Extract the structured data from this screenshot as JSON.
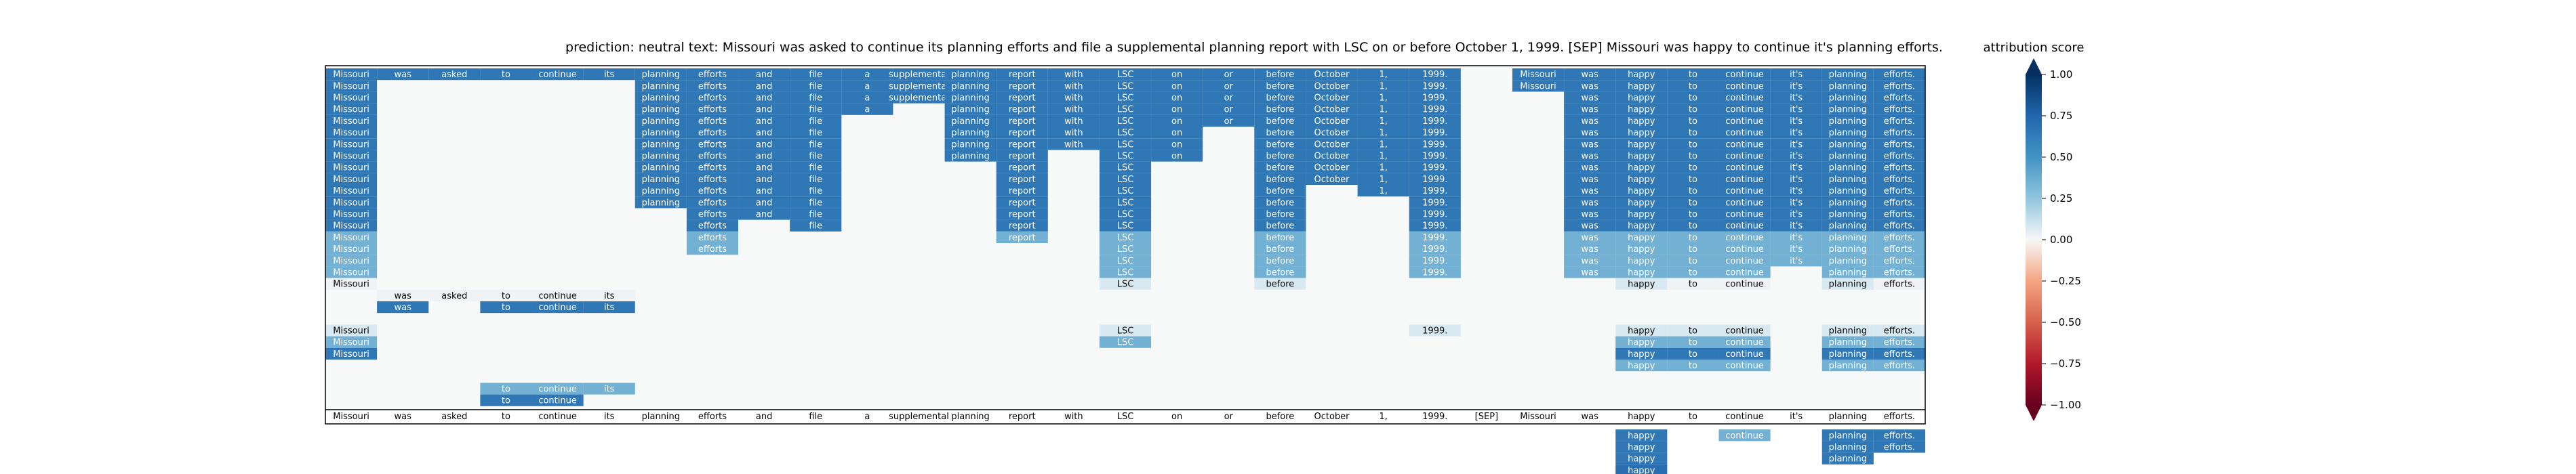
{
  "chart_data": {
    "type": "heatmap",
    "title": "prediction:  neutral     text:  Missouri was asked to continue its planning efforts and file a supplemental planning report with LSC on or before October 1, 1999. [SEP] Missouri was happy to continue it's planning efforts.",
    "tokens": [
      "Missouri",
      "was",
      "asked",
      "to",
      "continue",
      "its",
      "planning",
      "efforts",
      "and",
      "file",
      "a",
      "supplemental",
      "planning",
      "report",
      "with",
      "LSC",
      "on",
      "or",
      "before",
      "October",
      "1,",
      "1999.",
      "[SEP]",
      "Missouri",
      "was",
      "happy",
      "to",
      "continue",
      "it's",
      "planning",
      "efforts."
    ],
    "colorbar": {
      "label": "attribution score",
      "range": [
        -1.0,
        1.0
      ],
      "ticks": [
        "1.00",
        "0.75",
        "0.50",
        "0.25",
        "0.00",
        "−0.25",
        "−0.50",
        "−0.75",
        "−1.00"
      ]
    },
    "matrix": [
      [
        0.9,
        0.9,
        0.9,
        0.9,
        0.9,
        0.9,
        0.9,
        0.9,
        0.9,
        0.9,
        0.9,
        0.9,
        0.9,
        0.9,
        0.9,
        0.9,
        0.9,
        0.9,
        0.9,
        0.9,
        0.9,
        0.9,
        0,
        0.9,
        0.9,
        0.9,
        0.9,
        0.9,
        0.9,
        0.9,
        0.9
      ],
      [
        0.9,
        0,
        0,
        0,
        0,
        0,
        0.9,
        0.9,
        0.9,
        0.9,
        0.9,
        0.9,
        0.9,
        0.9,
        0.9,
        0.9,
        0.9,
        0.9,
        0.9,
        0.9,
        0.9,
        0.9,
        0,
        0.9,
        0.9,
        0.9,
        0.9,
        0.9,
        0.9,
        0.9,
        0.9
      ],
      [
        0.9,
        0,
        0,
        0,
        0,
        0,
        0.9,
        0.9,
        0.9,
        0.9,
        0.9,
        0.9,
        0.9,
        0.9,
        0.9,
        0.9,
        0.9,
        0.9,
        0.9,
        0.9,
        0.9,
        0.9,
        0,
        0,
        0.9,
        0.9,
        0.9,
        0.9,
        0.9,
        0.9,
        0.9
      ],
      [
        0.9,
        0,
        0,
        0,
        0,
        0,
        0.9,
        0.9,
        0.9,
        0.9,
        0.9,
        0,
        0.9,
        0.9,
        0.9,
        0.9,
        0.9,
        0.9,
        0.9,
        0.9,
        0.9,
        0.9,
        0,
        0,
        0.9,
        0.9,
        0.9,
        0.9,
        0.9,
        0.9,
        0.9
      ],
      [
        0.9,
        0,
        0,
        0,
        0,
        0,
        0.9,
        0.9,
        0.9,
        0.9,
        0,
        0,
        0.9,
        0.9,
        0.9,
        0.9,
        0.9,
        0.9,
        0.9,
        0.9,
        0.9,
        0.9,
        0,
        0,
        0.9,
        0.9,
        0.9,
        0.9,
        0.9,
        0.9,
        0.9
      ],
      [
        0.9,
        0,
        0,
        0,
        0,
        0,
        0.9,
        0.9,
        0.9,
        0.9,
        0,
        0,
        0.9,
        0.9,
        0.9,
        0.9,
        0.9,
        0,
        0.9,
        0.9,
        0.9,
        0.9,
        0,
        0,
        0.9,
        0.9,
        0.9,
        0.9,
        0.9,
        0.9,
        0.9
      ],
      [
        0.9,
        0,
        0,
        0,
        0,
        0,
        0.9,
        0.9,
        0.9,
        0.9,
        0,
        0,
        0.9,
        0.9,
        0.9,
        0.9,
        0.9,
        0,
        0.9,
        0.9,
        0.9,
        0.9,
        0,
        0,
        0.9,
        0.9,
        0.9,
        0.9,
        0.9,
        0.9,
        0.9
      ],
      [
        0.9,
        0,
        0,
        0,
        0,
        0,
        0.9,
        0.9,
        0.9,
        0.9,
        0,
        0,
        0.9,
        0.9,
        0,
        0.9,
        0.9,
        0,
        0.9,
        0.9,
        0.9,
        0.9,
        0,
        0,
        0.9,
        0.9,
        0.9,
        0.9,
        0.9,
        0.9,
        0.9
      ],
      [
        0.9,
        0,
        0,
        0,
        0,
        0,
        0.9,
        0.9,
        0.9,
        0.9,
        0,
        0,
        0,
        0.9,
        0,
        0.9,
        0,
        0,
        0.9,
        0.9,
        0.9,
        0.9,
        0,
        0,
        0.9,
        0.9,
        0.9,
        0.9,
        0.9,
        0.9,
        0.9
      ],
      [
        0.9,
        0,
        0,
        0,
        0,
        0,
        0.9,
        0.9,
        0.9,
        0.9,
        0,
        0,
        0,
        0.9,
        0,
        0.9,
        0,
        0,
        0.9,
        0.9,
        0.9,
        0.9,
        0,
        0,
        0.9,
        0.9,
        0.9,
        0.9,
        0.9,
        0.9,
        0.9
      ],
      [
        0.9,
        0,
        0,
        0,
        0,
        0,
        0.9,
        0.9,
        0.9,
        0.9,
        0,
        0,
        0,
        0.9,
        0,
        0.9,
        0,
        0,
        0.9,
        0,
        0.9,
        0.9,
        0,
        0,
        0.9,
        0.9,
        0.9,
        0.9,
        0.9,
        0.9,
        0.9
      ],
      [
        0.9,
        0,
        0,
        0,
        0,
        0,
        0.9,
        0.9,
        0.9,
        0.9,
        0,
        0,
        0,
        0.9,
        0,
        0.9,
        0,
        0,
        0.9,
        0,
        0,
        0.9,
        0,
        0,
        0.9,
        0.9,
        0.9,
        0.9,
        0.9,
        0.9,
        0.9
      ],
      [
        0.9,
        0,
        0,
        0,
        0,
        0,
        0,
        0.9,
        0.9,
        0.9,
        0,
        0,
        0,
        0.9,
        0,
        0.9,
        0,
        0,
        0.9,
        0,
        0,
        0.9,
        0,
        0,
        0.9,
        0.9,
        0.9,
        0.9,
        0.9,
        0.9,
        0.9
      ],
      [
        0.9,
        0,
        0,
        0,
        0,
        0,
        0,
        0.9,
        0,
        0.9,
        0,
        0,
        0,
        0.9,
        0,
        0.9,
        0,
        0,
        0.9,
        0,
        0,
        0.9,
        0,
        0,
        0.9,
        0.9,
        0.9,
        0.9,
        0.9,
        0.9,
        0.9
      ],
      [
        0.6,
        0,
        0,
        0,
        0,
        0,
        0,
        0.6,
        0,
        0,
        0,
        0,
        0,
        0.6,
        0,
        0.6,
        0,
        0,
        0.6,
        0,
        0,
        0.6,
        0,
        0,
        0.6,
        0.6,
        0.6,
        0.6,
        0.6,
        0.6,
        0.6
      ],
      [
        0.6,
        0,
        0,
        0,
        0,
        0,
        0,
        0.6,
        0,
        0,
        0,
        0,
        0,
        0,
        0,
        0.6,
        0,
        0,
        0.6,
        0,
        0,
        0.6,
        0,
        0,
        0.6,
        0.6,
        0.6,
        0.6,
        0.6,
        0.6,
        0.6
      ],
      [
        0.6,
        0,
        0,
        0,
        0,
        0,
        0,
        0,
        0,
        0,
        0,
        0,
        0,
        0,
        0,
        0.6,
        0,
        0,
        0.6,
        0,
        0,
        0.6,
        0,
        0,
        0.6,
        0.6,
        0.6,
        0.6,
        0.6,
        0.6,
        0.6
      ],
      [
        0.6,
        0,
        0,
        0,
        0,
        0,
        0,
        0,
        0,
        0,
        0,
        0,
        0,
        0,
        0,
        0.6,
        0,
        0,
        0.6,
        0,
        0,
        0.6,
        0,
        0,
        0.6,
        0.6,
        0.6,
        0.6,
        0,
        0.6,
        0.6
      ],
      [
        0.05,
        0,
        0,
        0,
        0,
        0,
        0,
        0,
        0,
        0,
        0,
        0,
        0,
        0,
        0,
        0.2,
        0,
        0,
        0.2,
        0,
        0,
        0,
        0,
        0,
        0,
        0.2,
        0.05,
        0.05,
        0,
        0.2,
        0.05
      ],
      [
        0,
        0.05,
        0.05,
        0.05,
        0.05,
        0.05,
        0,
        0,
        0,
        0,
        0,
        0,
        0,
        0,
        0,
        0,
        0,
        0,
        0,
        0,
        0,
        0,
        0,
        0,
        0,
        0,
        0,
        0,
        0,
        0,
        0
      ],
      [
        0,
        0.9,
        0,
        0.9,
        0.9,
        0.9,
        0,
        0,
        0,
        0,
        0,
        0,
        0,
        0,
        0,
        0,
        0,
        0,
        0,
        0,
        0,
        0,
        0,
        0,
        0,
        0,
        0,
        0,
        0,
        0,
        0
      ],
      [
        0,
        0,
        0,
        0,
        0,
        0,
        0,
        0,
        0,
        0,
        0,
        0,
        0,
        0,
        0,
        0,
        0,
        0,
        0,
        0,
        0,
        0,
        0,
        0,
        0,
        0,
        0,
        0,
        0,
        0,
        0
      ],
      [
        0.2,
        0,
        0,
        0,
        0,
        0,
        0,
        0,
        0,
        0,
        0,
        0,
        0,
        0,
        0,
        0.2,
        0,
        0,
        0,
        0,
        0,
        0.2,
        0,
        0,
        0,
        0.2,
        0.2,
        0.2,
        0,
        0.2,
        0.2
      ],
      [
        0.6,
        0,
        0,
        0,
        0,
        0,
        0,
        0,
        0,
        0,
        0,
        0,
        0,
        0,
        0,
        0.6,
        0,
        0,
        0,
        0,
        0,
        0,
        0,
        0,
        0,
        0.6,
        0.6,
        0.6,
        0,
        0.6,
        0.6
      ],
      [
        0.9,
        0,
        0,
        0,
        0,
        0,
        0,
        0,
        0,
        0,
        0,
        0,
        0,
        0,
        0,
        0,
        0,
        0,
        0,
        0,
        0,
        0,
        0,
        0,
        0,
        0.9,
        0.9,
        0.9,
        0,
        0.9,
        0.9
      ],
      [
        0,
        0,
        0,
        0,
        0,
        0,
        0,
        0,
        0,
        0,
        0,
        0,
        0,
        0,
        0,
        0,
        0,
        0,
        0,
        0,
        0,
        0,
        0,
        0,
        0,
        0.6,
        0.6,
        0.6,
        0,
        0.6,
        0.6
      ],
      [
        0,
        0,
        0,
        0,
        0,
        0,
        0,
        0,
        0,
        0,
        0,
        0,
        0,
        0,
        0,
        0,
        0,
        0,
        0,
        0,
        0,
        0,
        0,
        0,
        0,
        0,
        0,
        0,
        0,
        0,
        0
      ],
      [
        0,
        0,
        0,
        0.6,
        0.6,
        0.6,
        0,
        0,
        0,
        0,
        0,
        0,
        0,
        0,
        0,
        0,
        0,
        0,
        0,
        0,
        0,
        0,
        0,
        0,
        0,
        0,
        0,
        0,
        0,
        0,
        0
      ],
      [
        0,
        0,
        0,
        0.9,
        0.9,
        0,
        0,
        0,
        0,
        0,
        0,
        0,
        0,
        0,
        0,
        0,
        0,
        0,
        0,
        0,
        0,
        0,
        0,
        0,
        0,
        0,
        0,
        0,
        0,
        0,
        0
      ],
      [
        0,
        0,
        0,
        0,
        0,
        0,
        0,
        0,
        0,
        0,
        0,
        0,
        0,
        0,
        0,
        0,
        0,
        0,
        0,
        0,
        0,
        0,
        0,
        0,
        0,
        0,
        0,
        0,
        0,
        0,
        0
      ],
      [
        0,
        0,
        0,
        0,
        0,
        0,
        0,
        0,
        0,
        0,
        0,
        0,
        0,
        0,
        0,
        0,
        0,
        0,
        0,
        0,
        0,
        0,
        0,
        0,
        0,
        0,
        0,
        0,
        0,
        0,
        0
      ],
      [
        0,
        0,
        0,
        0,
        0,
        0,
        0,
        0,
        0,
        0,
        0,
        0,
        0,
        0,
        0,
        0,
        0,
        0,
        0,
        0,
        0,
        0,
        0,
        0,
        0,
        0.9,
        0,
        0.6,
        0,
        0.9,
        0.9
      ],
      [
        0,
        0,
        0,
        0,
        0,
        0,
        0,
        0,
        0,
        0,
        0,
        0,
        0,
        0,
        0,
        0,
        0,
        0,
        0,
        0,
        0,
        0,
        0,
        0,
        0,
        0.9,
        0,
        0,
        0,
        0.9,
        0.9
      ],
      [
        0,
        0,
        0,
        0,
        0,
        0,
        0,
        0,
        0,
        0,
        0,
        0,
        0,
        0,
        0,
        0,
        0,
        0,
        0,
        0,
        0,
        0,
        0,
        0,
        0,
        0.9,
        0,
        0,
        0,
        0.9,
        0
      ],
      [
        0,
        0,
        0,
        0,
        0,
        0,
        0,
        0,
        0,
        0,
        0,
        0,
        0,
        0,
        0,
        0,
        0,
        0,
        0,
        0,
        0,
        0,
        0,
        0,
        0,
        0.95,
        0,
        0,
        0,
        0,
        0
      ]
    ]
  }
}
